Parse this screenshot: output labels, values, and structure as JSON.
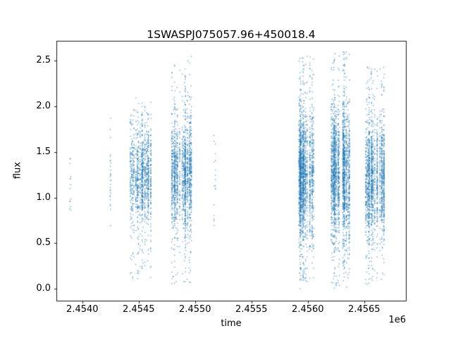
{
  "chart_data": {
    "type": "scatter",
    "title": "1SWASPJ075057.96+450018.4",
    "xlabel": "time",
    "ylabel": "flux",
    "x_offset_text": "1e6",
    "xlim": [
      2453770,
      2456870
    ],
    "ylim": [
      -0.13,
      2.72
    ],
    "xticks": [
      2454000,
      2454500,
      2455000,
      2455500,
      2456000,
      2456500
    ],
    "xtick_labels": [
      "2.4540",
      "2.4545",
      "2.4550",
      "2.4555",
      "2.4560",
      "2.4565"
    ],
    "yticks": [
      0.0,
      0.5,
      1.0,
      1.5,
      2.0,
      2.5
    ],
    "ytick_labels": [
      "0.0",
      "0.5",
      "1.0",
      "1.5",
      "2.0",
      "2.5"
    ],
    "marker_color": "#1f77b4",
    "marker_alpha": 0.65,
    "grid": false,
    "legend": null,
    "clusters": [
      {
        "x_start": 2453888,
        "x_end": 2453900,
        "nights": 2,
        "points_per_night": 7,
        "flux_center": 1.1,
        "flux_sigma": 0.16,
        "flux_min": 0.85,
        "flux_max": 1.45,
        "outlier_frac": 0.08
      },
      {
        "x_start": 2454248,
        "x_end": 2454262,
        "nights": 2,
        "points_per_night": 14,
        "flux_center": 1.2,
        "flux_sigma": 0.33,
        "flux_min": 0.55,
        "flux_max": 2.0,
        "outlier_frac": 0.15
      },
      {
        "x_start": 2454420,
        "x_end": 2454620,
        "nights": 22,
        "points_per_night": 55,
        "flux_center": 1.25,
        "flux_sigma": 0.28,
        "flux_min": 0.1,
        "flux_max": 2.1,
        "outlier_frac": 0.12
      },
      {
        "x_start": 2454790,
        "x_end": 2454990,
        "nights": 24,
        "points_per_night": 65,
        "flux_center": 1.25,
        "flux_sigma": 0.3,
        "flux_min": 0.05,
        "flux_max": 2.55,
        "outlier_frac": 0.13
      },
      {
        "x_start": 2455168,
        "x_end": 2455182,
        "nights": 2,
        "points_per_night": 9,
        "flux_center": 1.2,
        "flux_sigma": 0.3,
        "flux_min": 0.65,
        "flux_max": 1.75,
        "outlier_frac": 0.1
      },
      {
        "x_start": 2455920,
        "x_end": 2456060,
        "nights": 22,
        "points_per_night": 85,
        "flux_center": 1.25,
        "flux_sigma": 0.33,
        "flux_min": 0.0,
        "flux_max": 2.55,
        "outlier_frac": 0.14
      },
      {
        "x_start": 2456200,
        "x_end": 2456370,
        "nights": 25,
        "points_per_night": 85,
        "flux_center": 1.25,
        "flux_sigma": 0.35,
        "flux_min": 0.0,
        "flux_max": 2.6,
        "outlier_frac": 0.14
      },
      {
        "x_start": 2456510,
        "x_end": 2456680,
        "nights": 22,
        "points_per_night": 75,
        "flux_center": 1.2,
        "flux_sigma": 0.32,
        "flux_min": 0.05,
        "flux_max": 2.45,
        "outlier_frac": 0.13
      }
    ]
  }
}
